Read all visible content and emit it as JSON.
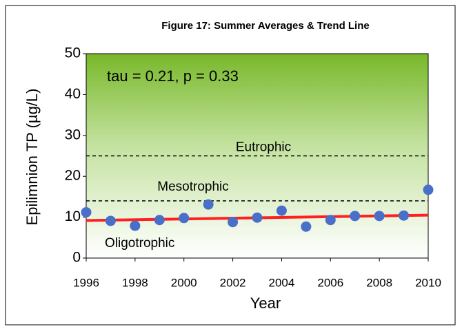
{
  "chart_data": {
    "type": "scatter",
    "title": "Figure 17:  Summer Averages & Trend Line",
    "x_label": "Year",
    "y_label": "Epilimnion TP (µg/L)",
    "annotation": "tau = 0.21, p = 0.33",
    "x": [
      1996,
      1997,
      1998,
      1999,
      2000,
      2001,
      2002,
      2003,
      2004,
      2005,
      2006,
      2007,
      2008,
      2009,
      2010
    ],
    "values": [
      11.2,
      9.1,
      7.9,
      9.3,
      9.8,
      13.1,
      8.8,
      9.9,
      11.6,
      7.7,
      9.3,
      10.3,
      10.3,
      10.4,
      16.7
    ],
    "color": "#4a6fc8",
    "trend": {
      "x": [
        1996,
        2010
      ],
      "values": [
        9.2,
        10.5
      ],
      "color": "#ff2020"
    },
    "thresholds": [
      {
        "label": "Eutrophic",
        "value": 25
      },
      {
        "label": "Mesotrophic",
        "value": 14
      }
    ],
    "lowest_class": "Oligotrophic",
    "xlim": [
      1996,
      2010
    ],
    "xticks": [
      1996,
      1998,
      2000,
      2002,
      2004,
      2006,
      2008,
      2010
    ],
    "ylim": [
      0,
      50
    ],
    "yticks": [
      0,
      10,
      20,
      30,
      40,
      50
    ]
  }
}
